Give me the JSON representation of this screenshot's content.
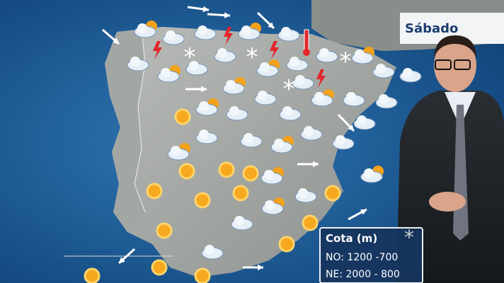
{
  "day_label": "Sábado",
  "legend": {
    "title": "Cota (m)",
    "rows": [
      "NO: 1200 -700",
      "NE: 2000 - 800"
    ]
  }
}
